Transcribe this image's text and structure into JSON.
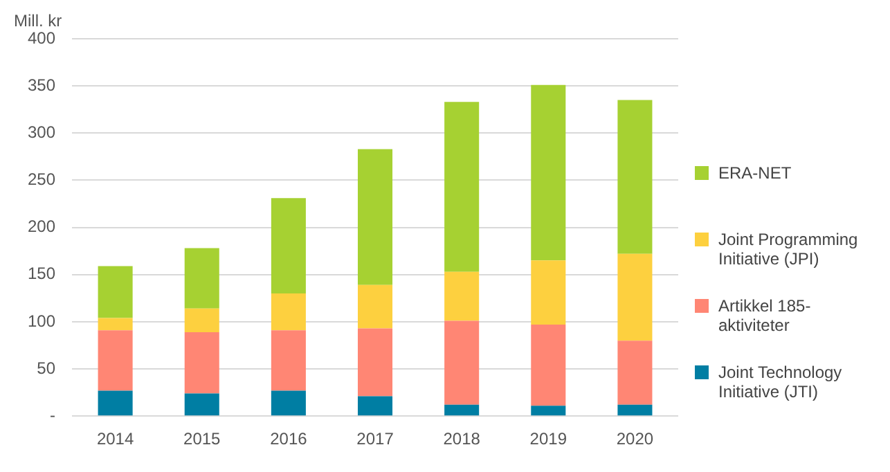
{
  "chart_data": {
    "type": "bar",
    "stacked": true,
    "ylabel": "Mill. kr",
    "categories": [
      "2014",
      "2015",
      "2016",
      "2017",
      "2018",
      "2019",
      "2020"
    ],
    "series": [
      {
        "name": "Joint Technology Initiative (JTI)",
        "color": "#007ea3",
        "values": [
          27,
          24,
          27,
          21,
          12,
          11,
          12
        ]
      },
      {
        "name": "Artikkel 185-aktiviteter",
        "color": "#ff8674",
        "values": [
          64,
          65,
          64,
          72,
          89,
          86,
          68
        ]
      },
      {
        "name": "Joint Programming Initiative (JPI)",
        "color": "#fdd03f",
        "values": [
          13,
          25,
          39,
          46,
          52,
          68,
          92
        ]
      },
      {
        "name": "ERA-NET",
        "color": "#a6d132",
        "values": [
          55,
          64,
          101,
          144,
          180,
          186,
          163
        ]
      }
    ],
    "ylim": [
      0,
      400
    ],
    "yticks": [
      {
        "value": 0,
        "label": "-"
      },
      50,
      100,
      150,
      200,
      250,
      300,
      350,
      400
    ],
    "grid": "y",
    "legend": "right"
  }
}
